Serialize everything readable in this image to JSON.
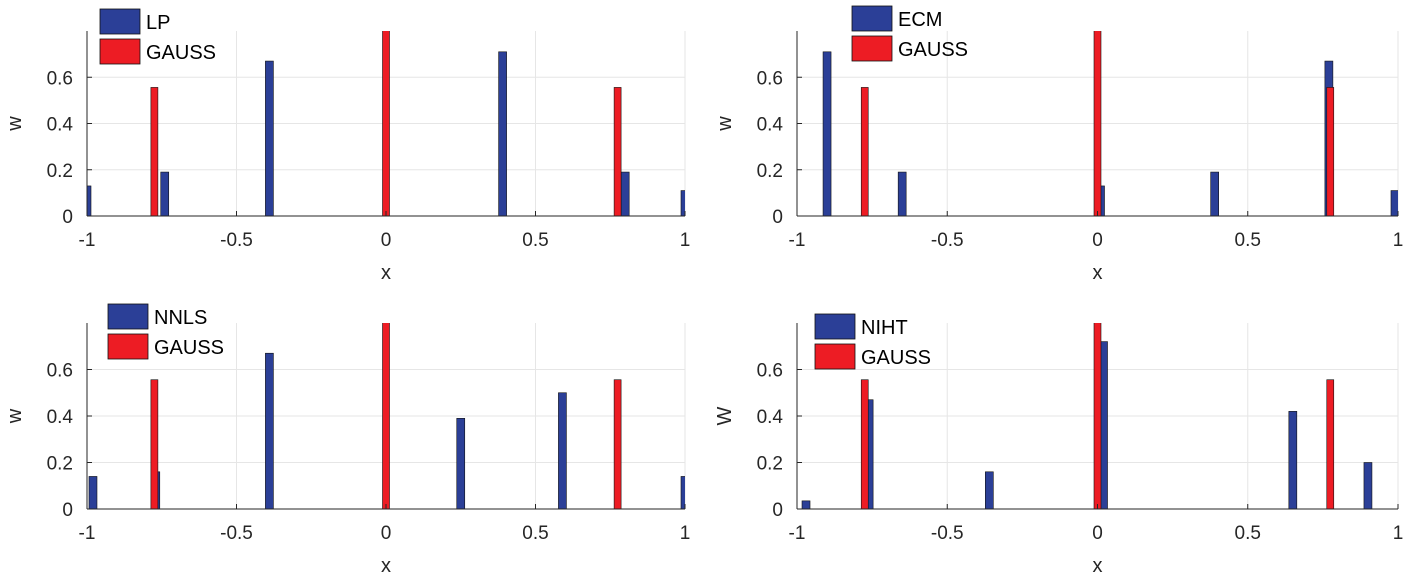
{
  "colors": {
    "series_a": "#2b3f97",
    "gauss": "#ed1c24",
    "grid": "#e6e6e6",
    "axis": "#262626"
  },
  "chart_data": [
    {
      "type": "bar",
      "xlabel": "x",
      "ylabel": "w",
      "xlim": [
        -1,
        1
      ],
      "ylim": [
        0,
        0.8
      ],
      "xticks": [
        "-1",
        "-0.5",
        "0",
        "0.5",
        "1"
      ],
      "yticks": [
        "0",
        "0.2",
        "0.4",
        "0.6"
      ],
      "grid": true,
      "legend_position": "top-left",
      "series": [
        {
          "name": "LP",
          "color": "#2b3f97",
          "x": [
            -1.0,
            -0.74,
            -0.39,
            0.39,
            0.8,
            1.0
          ],
          "values": [
            0.13,
            0.19,
            0.67,
            0.71,
            0.19,
            0.11
          ]
        },
        {
          "name": "GAUSS",
          "color": "#ed1c24",
          "x": [
            -0.7746,
            0.0,
            0.7746
          ],
          "values": [
            0.556,
            0.889,
            0.556
          ]
        }
      ]
    },
    {
      "type": "bar",
      "xlabel": "x",
      "ylabel": "w",
      "xlim": [
        -1,
        1
      ],
      "ylim": [
        0,
        0.8
      ],
      "xticks": [
        "-1",
        "-0.5",
        "0",
        "0.5",
        "1"
      ],
      "yticks": [
        "0",
        "0.2",
        "0.4",
        "0.6"
      ],
      "grid": true,
      "legend_position": "top-center",
      "series": [
        {
          "name": "ECM",
          "color": "#2b3f97",
          "x": [
            -0.9,
            -0.65,
            0.01,
            0.39,
            0.77,
            0.99
          ],
          "values": [
            0.71,
            0.19,
            0.13,
            0.19,
            0.67,
            0.11
          ]
        },
        {
          "name": "GAUSS",
          "color": "#ed1c24",
          "x": [
            -0.7746,
            0.0,
            0.7746
          ],
          "values": [
            0.556,
            0.889,
            0.556
          ]
        }
      ]
    },
    {
      "type": "bar",
      "xlabel": "x",
      "ylabel": "w",
      "xlim": [
        -1,
        1
      ],
      "ylim": [
        0,
        0.8
      ],
      "xticks": [
        "-1",
        "-0.5",
        "0",
        "0.5",
        "1"
      ],
      "yticks": [
        "0",
        "0.2",
        "0.4",
        "0.6"
      ],
      "grid": true,
      "legend_position": "top-left",
      "series": [
        {
          "name": "NNLS",
          "color": "#2b3f97",
          "x": [
            -0.98,
            -0.77,
            -0.39,
            0.25,
            0.59,
            1.0
          ],
          "values": [
            0.14,
            0.16,
            0.67,
            0.39,
            0.5,
            0.14
          ]
        },
        {
          "name": "GAUSS",
          "color": "#ed1c24",
          "x": [
            -0.7746,
            0.0,
            0.7746
          ],
          "values": [
            0.556,
            0.889,
            0.556
          ]
        }
      ]
    },
    {
      "type": "bar",
      "xlabel": "x",
      "ylabel": "W",
      "xlim": [
        -1,
        1
      ],
      "ylim": [
        0,
        0.8
      ],
      "xticks": [
        "-1",
        "-0.5",
        "0",
        "0.5",
        "1"
      ],
      "yticks": [
        "0",
        "0.2",
        "0.4",
        "0.6"
      ],
      "grid": true,
      "legend_position": "top-left",
      "series": [
        {
          "name": "NIHT",
          "color": "#2b3f97",
          "x": [
            -0.97,
            -0.76,
            -0.36,
            0.02,
            0.65,
            0.9
          ],
          "values": [
            0.035,
            0.47,
            0.16,
            0.72,
            0.42,
            0.2
          ]
        },
        {
          "name": "GAUSS",
          "color": "#ed1c24",
          "x": [
            -0.7746,
            0.0,
            0.7746
          ],
          "values": [
            0.556,
            0.889,
            0.556
          ]
        }
      ]
    }
  ]
}
